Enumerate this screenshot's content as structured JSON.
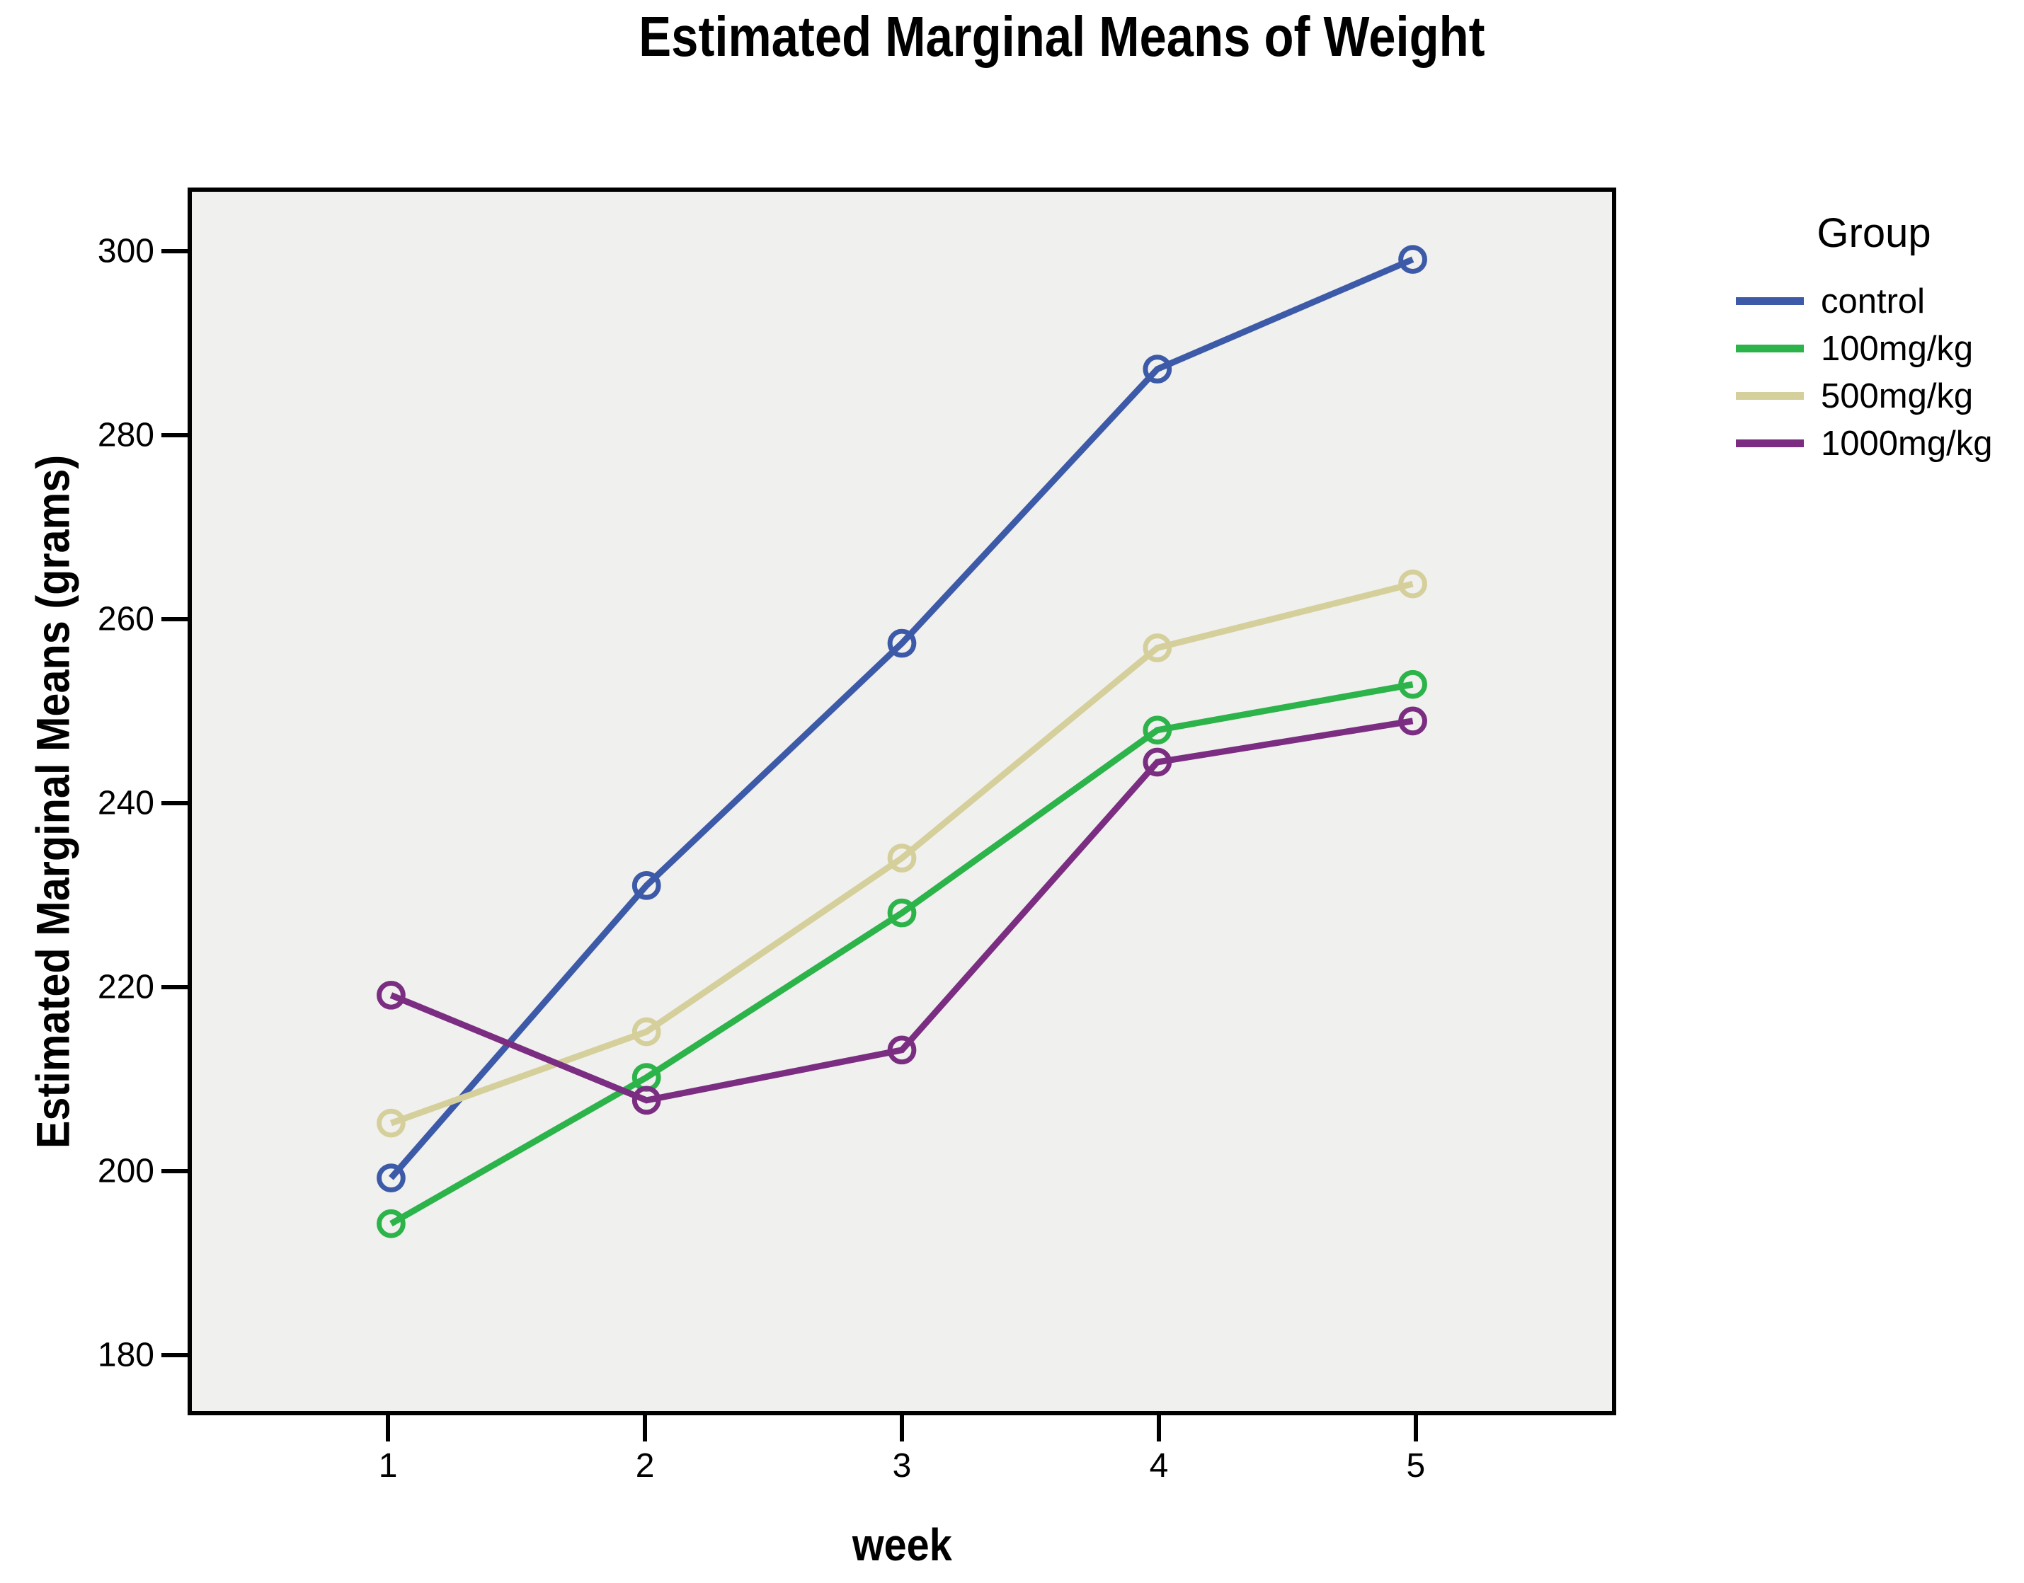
{
  "chart_data": {
    "type": "line",
    "title": "Estimated Marginal Means of Weight",
    "xlabel": "week",
    "ylabel": "Estimated Marginal Means (grams)",
    "x": [
      1,
      2,
      3,
      4,
      5
    ],
    "x_tick_labels": [
      "1",
      "2",
      "3",
      "4",
      "5"
    ],
    "y_ticks": [
      180,
      200,
      220,
      240,
      260,
      280,
      300
    ],
    "y_tick_labels": [
      "180",
      "200",
      "220",
      "240",
      "260",
      "280",
      "300"
    ],
    "ylim": [
      173.5,
      306.9
    ],
    "xlim": [
      0.22,
      5.78
    ],
    "grid": false,
    "plot_background": "#F0F0EE",
    "frame_color": "#000000",
    "marker": "open-circle",
    "legend_title": "Group",
    "legend_position": "right",
    "series": [
      {
        "name": "control",
        "color": "#3C5AA8",
        "values": [
          199,
          231,
          257.5,
          287.5,
          299.5
        ]
      },
      {
        "name": "100mg/kg",
        "color": "#2CB34A",
        "values": [
          194,
          210,
          228,
          248,
          253
        ]
      },
      {
        "name": "500mg/kg",
        "color": "#D5D09B",
        "values": [
          205,
          215,
          234,
          257,
          264
        ]
      },
      {
        "name": "1000mg/kg",
        "color": "#7B2D82",
        "values": [
          219,
          207.5,
          213,
          244.5,
          249
        ]
      }
    ]
  }
}
